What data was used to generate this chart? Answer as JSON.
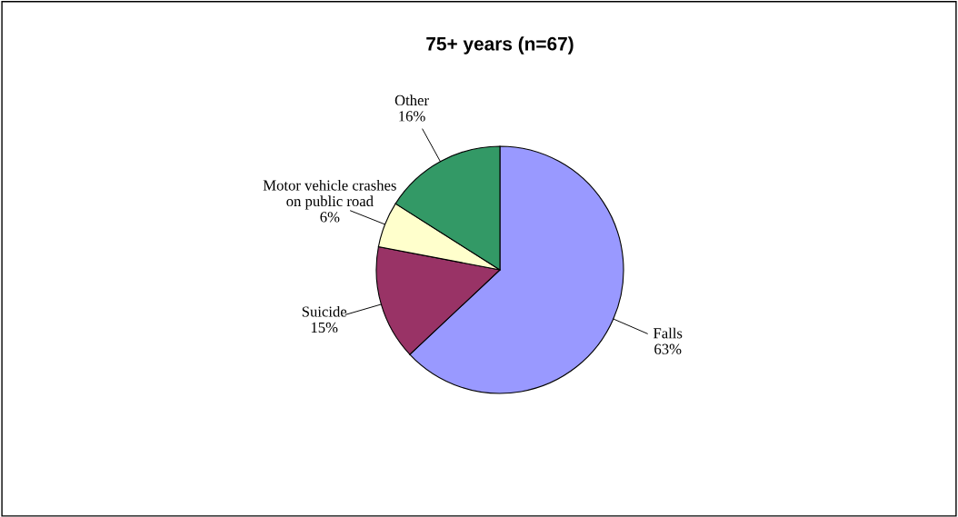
{
  "chart_data": {
    "type": "pie",
    "title": "75+ years (n=67)",
    "categories": [
      "Falls",
      "Suicide",
      "Motor vehicle crashes\non public road",
      "Other"
    ],
    "values": [
      63,
      15,
      6,
      16
    ],
    "colors": [
      "#9999ff",
      "#993366",
      "#ffffcc",
      "#339966"
    ],
    "value_labels": [
      "63%",
      "15%",
      "6%",
      "16%"
    ],
    "legend": false
  }
}
